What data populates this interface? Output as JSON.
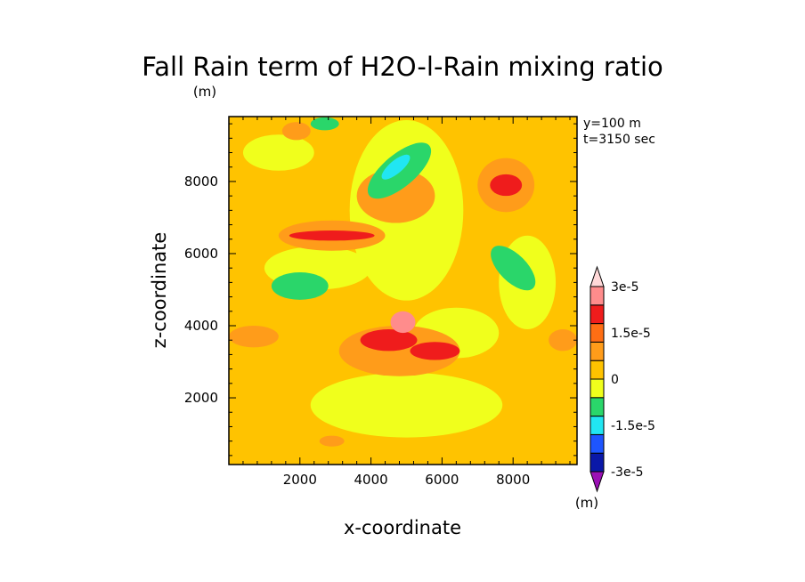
{
  "chart_data": {
    "type": "heatmap",
    "title": "Fall Rain term of H2O-l-Rain mixing ratio",
    "unit_top": "(m)",
    "xlabel": "x-coordinate",
    "ylabel": "z-coordinate",
    "xlim": [
      0,
      9800
    ],
    "ylim": [
      150,
      9800
    ],
    "x_ticks": [
      2000,
      4000,
      6000,
      8000
    ],
    "y_ticks": [
      2000,
      4000,
      6000,
      8000
    ],
    "x_tick_labels": [
      "2000",
      "4000",
      "6000",
      "8000"
    ],
    "y_tick_labels": [
      "2000",
      "4000",
      "6000",
      "8000"
    ],
    "info": [
      "y=100 m",
      "t=3150 sec"
    ],
    "colorbar": {
      "levels": [
        -3e-05,
        -2.25e-05,
        -1.5e-05,
        -7.5e-06,
        0,
        7.5e-06,
        1.5e-05,
        2.25e-05,
        3e-05
      ],
      "colors": [
        "#9b10b5",
        "#0a18a8",
        "#1e55ff",
        "#21e6f2",
        "#2ad66a",
        "#f0ff1c",
        "#ffc300",
        "#ff9c1a",
        "#ff6e14",
        "#ef1c1c",
        "#ff8c8c",
        "#ffd8d8"
      ],
      "labels": [
        {
          "text": "3e-5",
          "value": 3e-05
        },
        {
          "text": "1.5e-5",
          "value": 1.5e-05
        },
        {
          "text": "0",
          "value": 0
        },
        {
          "text": "-1.5e-5",
          "value": -1.5e-05
        },
        {
          "text": "-3e-5",
          "value": -3e-05
        }
      ],
      "unit": "(m)"
    },
    "background_color": "#ffc300",
    "features": [
      {
        "type": "yellow",
        "x": 5000,
        "z": 7200,
        "rx": 1600,
        "rz": 2500
      },
      {
        "type": "yellow",
        "x": 2500,
        "z": 5600,
        "rx": 1500,
        "rz": 600
      },
      {
        "type": "yellow",
        "x": 5000,
        "z": 1800,
        "rx": 2700,
        "rz": 900
      },
      {
        "type": "yellow",
        "x": 8400,
        "z": 5200,
        "rx": 800,
        "rz": 1300
      },
      {
        "type": "yellow",
        "x": 6400,
        "z": 3800,
        "rx": 1200,
        "rz": 700
      },
      {
        "type": "yellow",
        "x": 1400,
        "z": 8800,
        "rx": 1000,
        "rz": 500
      },
      {
        "type": "orange",
        "x": 4700,
        "z": 7600,
        "rx": 1100,
        "rz": 750
      },
      {
        "type": "orange",
        "x": 2900,
        "z": 6500,
        "rx": 1500,
        "rz": 420
      },
      {
        "type": "orange",
        "x": 7800,
        "z": 7900,
        "rx": 800,
        "rz": 750
      },
      {
        "type": "orange",
        "x": 4800,
        "z": 3300,
        "rx": 1700,
        "rz": 700
      },
      {
        "type": "orange",
        "x": 700,
        "z": 3700,
        "rx": 700,
        "rz": 300
      },
      {
        "type": "orange",
        "x": 9400,
        "z": 3600,
        "rx": 400,
        "rz": 300
      },
      {
        "type": "orange",
        "x": 2900,
        "z": 800,
        "rx": 350,
        "rz": 150
      },
      {
        "type": "orange",
        "x": 1900,
        "z": 9400,
        "rx": 400,
        "rz": 250
      },
      {
        "type": "red",
        "x": 2900,
        "z": 6500,
        "rx": 1200,
        "rz": 140
      },
      {
        "type": "red",
        "x": 7800,
        "z": 7900,
        "rx": 450,
        "rz": 300
      },
      {
        "type": "red",
        "x": 4500,
        "z": 3600,
        "rx": 800,
        "rz": 300
      },
      {
        "type": "red",
        "x": 5800,
        "z": 3300,
        "rx": 700,
        "rz": 250
      },
      {
        "type": "pink",
        "x": 4900,
        "z": 4100,
        "rx": 350,
        "rz": 300
      },
      {
        "type": "green",
        "x": 4800,
        "z": 8300,
        "rx": 1100,
        "rz": 450,
        "angle": 40
      },
      {
        "type": "cyan",
        "x": 4700,
        "z": 8400,
        "rx": 500,
        "rz": 180,
        "angle": 40
      },
      {
        "type": "green",
        "x": 2000,
        "z": 5100,
        "rx": 800,
        "rz": 380
      },
      {
        "type": "green",
        "x": 8000,
        "z": 5600,
        "rx": 800,
        "rz": 380,
        "angle": -45
      },
      {
        "type": "green",
        "x": 2700,
        "z": 9600,
        "rx": 400,
        "rz": 180
      }
    ]
  }
}
